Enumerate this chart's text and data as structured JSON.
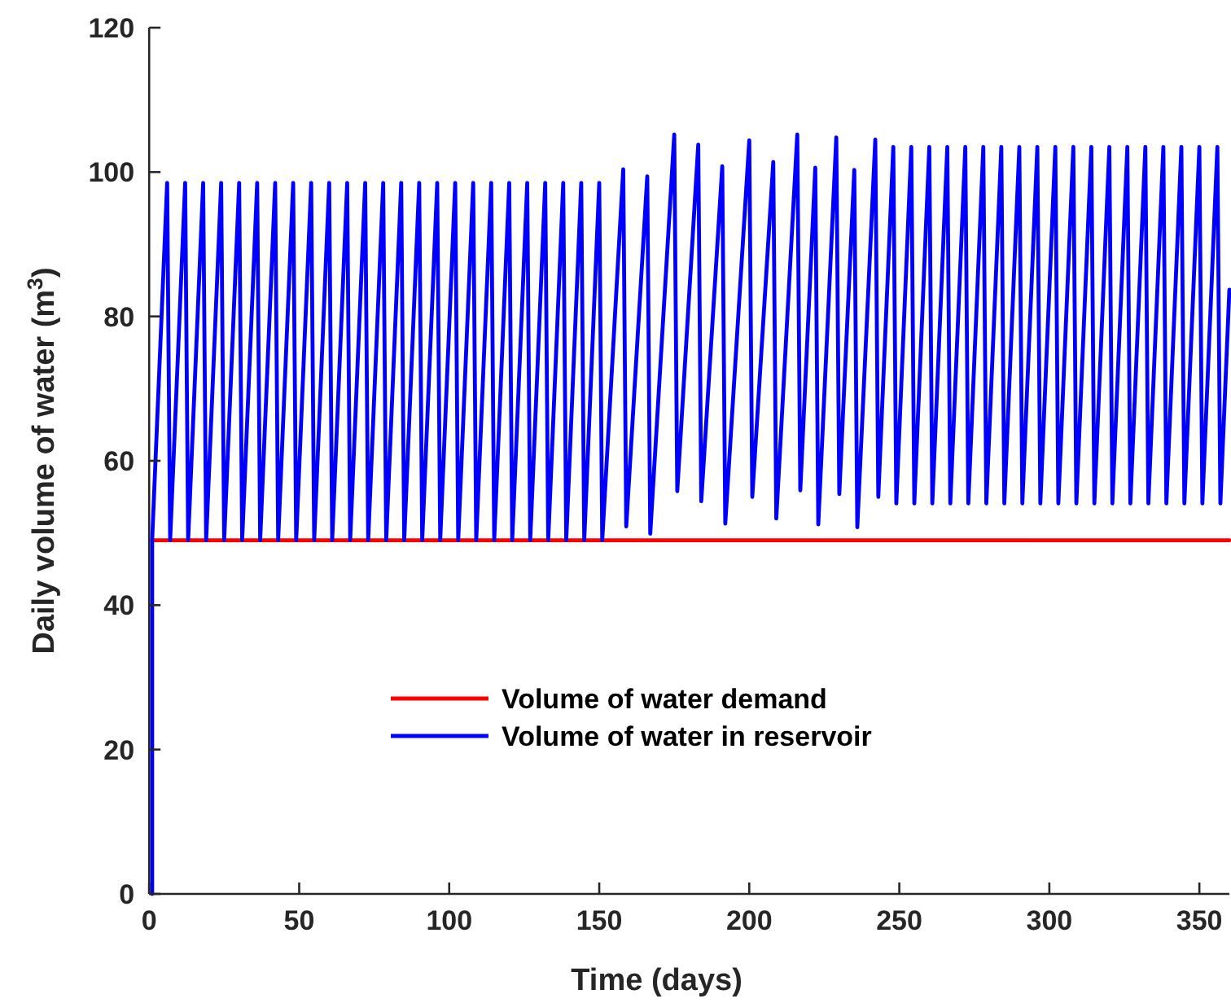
{
  "chart_data": {
    "type": "line",
    "xlabel": "Time (days)",
    "ylabel": "Daily volume of water (m$^{3}$)",
    "xlim": [
      0,
      360
    ],
    "ylim": [
      0,
      120
    ],
    "xticks": [
      0,
      50,
      100,
      150,
      200,
      250,
      300,
      350
    ],
    "yticks": [
      0,
      20,
      40,
      60,
      80,
      100,
      120
    ],
    "grid": false,
    "legend": "bottom",
    "marker": "none",
    "line_style": "solid",
    "series": [
      {
        "name": "Volume of water demand",
        "color": "#ff0000",
        "x": [
          1,
          360
        ],
        "values": [
          49,
          49
        ]
      },
      {
        "name": "Volume of water in reservoir",
        "color": "#0000ff",
        "x": [
          1,
          1,
          6,
          7,
          12,
          13,
          18,
          19,
          24,
          25,
          30,
          31,
          36,
          37,
          42,
          43,
          48,
          49,
          54,
          55,
          60,
          61,
          66,
          67,
          72,
          73,
          78,
          79,
          84,
          85,
          90,
          91,
          96,
          97,
          102,
          103,
          108,
          109,
          114,
          115,
          120,
          121,
          126,
          127,
          132,
          133,
          138,
          139,
          144,
          145,
          150,
          151,
          158,
          159,
          166,
          167,
          175,
          176,
          183,
          184,
          191,
          192,
          200,
          201,
          208,
          209,
          216,
          217,
          222,
          223,
          229,
          230,
          235,
          236,
          242,
          243,
          248,
          249,
          254,
          255,
          260,
          261,
          266,
          267,
          272,
          273,
          278,
          279,
          284,
          285,
          290,
          291,
          296,
          297,
          302,
          303,
          308,
          309,
          314,
          315,
          320,
          321,
          326,
          327,
          332,
          333,
          338,
          339,
          344,
          345,
          350,
          351,
          356,
          357,
          360
        ],
        "values": [
          0,
          49,
          98.5,
          49,
          98.5,
          49,
          98.5,
          49,
          98.5,
          49,
          98.5,
          49,
          98.5,
          49,
          98.5,
          49,
          98.5,
          49,
          98.5,
          49,
          98.5,
          49,
          98.5,
          49,
          98.5,
          49,
          98.5,
          49,
          98.5,
          49,
          98.5,
          49,
          98.5,
          49,
          98.5,
          49,
          98.5,
          49,
          98.5,
          49,
          98.5,
          49,
          98.5,
          49,
          98.5,
          49,
          98.5,
          49,
          98.5,
          49,
          98.5,
          49,
          100.4,
          50.9,
          99.4,
          49.9,
          105.2,
          55.8,
          103.8,
          54.4,
          100.8,
          51.3,
          104.4,
          55.0,
          101.4,
          52.0,
          105.2,
          55.9,
          100.6,
          51.2,
          104.8,
          55.4,
          100.3,
          50.8,
          104.5,
          55.0,
          103.5,
          54.1,
          103.5,
          54.1,
          103.5,
          54.1,
          103.5,
          54.1,
          103.5,
          54.1,
          103.5,
          54.1,
          103.5,
          54.1,
          103.5,
          54.1,
          103.5,
          54.1,
          103.5,
          54.1,
          103.5,
          54.1,
          103.5,
          54.1,
          103.5,
          54.1,
          103.5,
          54.1,
          103.5,
          54.1,
          103.5,
          54.1,
          103.5,
          54.1,
          103.5,
          54.1,
          103.5,
          54.1,
          83.7
        ]
      }
    ]
  }
}
